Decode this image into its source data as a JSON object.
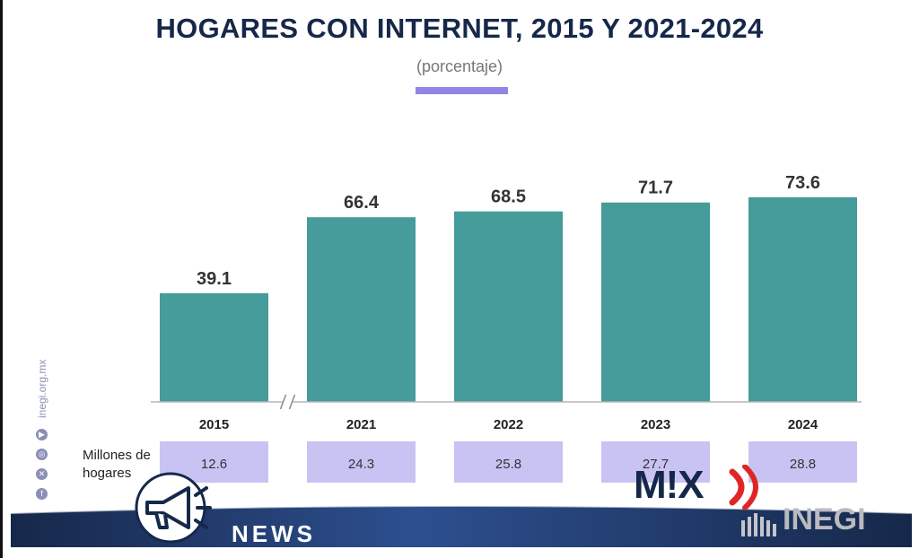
{
  "title": "HOGARES CON INTERNET, 2015 Y 2021-2024",
  "subtitle": "(porcentaje)",
  "chart_data": {
    "type": "bar",
    "title": "HOGARES CON INTERNET, 2015 Y 2021-2024",
    "subtitle": "(porcentaje)",
    "categories": [
      "2015",
      "2021",
      "2022",
      "2023",
      "2024"
    ],
    "values": [
      39.1,
      66.4,
      68.5,
      71.7,
      73.6
    ],
    "value_labels": [
      "39.1",
      "66.4",
      "68.5",
      "71.7",
      "73.6"
    ],
    "xlabel": "",
    "ylabel": "",
    "ylim": [
      0,
      100
    ],
    "axis_break_after": "2015",
    "grid": false,
    "bar_color": "#469b9b",
    "table_row": {
      "label": "Millones de hogares",
      "values": [
        "12.6",
        "24.3",
        "25.8",
        "27.7",
        "28.8"
      ],
      "cell_color": "#c9c3f4"
    }
  },
  "branding": {
    "website": "inegi.org.mx",
    "news_label": "NEWS",
    "mix_logo_text": "M!X",
    "inegi_logo_text": "INEGI",
    "accent_color": "#8f86e6",
    "title_color": "#16284a",
    "news_bar_color": "#1e3566"
  }
}
